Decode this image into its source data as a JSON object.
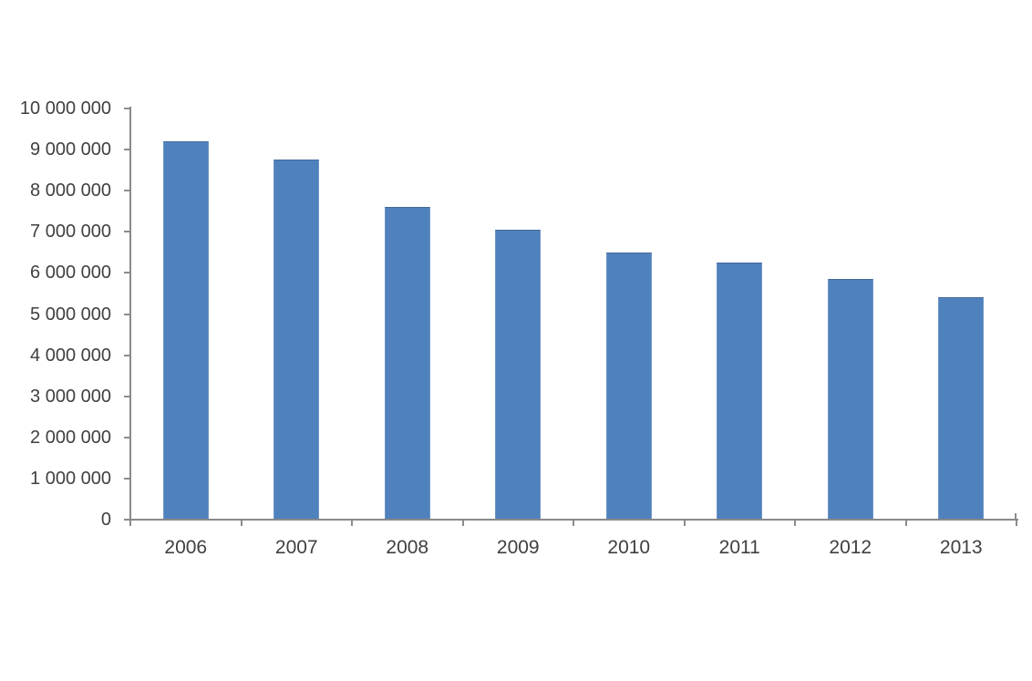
{
  "figure": {
    "background": "#ffffff"
  },
  "chart_data": {
    "type": "bar",
    "title": "",
    "xlabel": "",
    "ylabel": "",
    "categories": [
      "2006",
      "2007",
      "2008",
      "2009",
      "2010",
      "2011",
      "2012",
      "2013"
    ],
    "values": [
      9200000,
      8750000,
      7600000,
      7050000,
      6500000,
      6250000,
      5850000,
      5400000
    ],
    "ylim": [
      0,
      10000000
    ],
    "y_tick_interval": 1000000,
    "y_tick_labels": [
      "0",
      "1 000 000",
      "2 000 000",
      "3 000 000",
      "4 000 000",
      "5 000 000",
      "6 000 000",
      "7 000 000",
      "8 000 000",
      "9 000 000",
      "10 000 000"
    ],
    "grid": false,
    "legend": "none",
    "colors": {
      "bar_fill": "#4f81bd",
      "bar_border": "#6d94c4",
      "bar_border_top": "#44699a",
      "axis_line": "#898989",
      "tick_mark": "#8c8c8c",
      "label_text": "#404040"
    }
  }
}
